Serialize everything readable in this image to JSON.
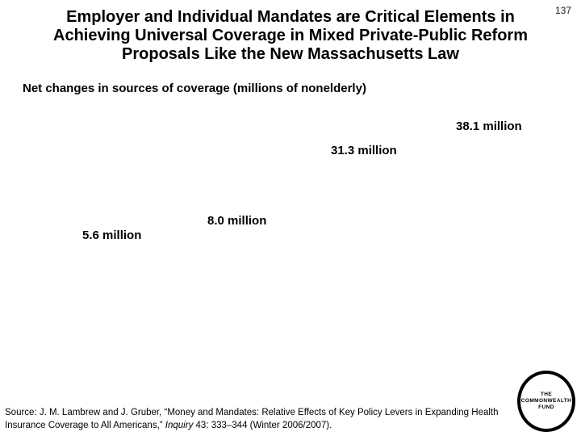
{
  "slide": {
    "page_number": "137",
    "title_lines": [
      "Employer and Individual Mandates are Critical Elements in",
      "Achieving Universal Coverage in Mixed Private-Public Reform",
      "Proposals Like the New Massachusetts Law"
    ]
  },
  "chart": {
    "subtitle": "Net changes in sources of coverage (millions of nonelderly)",
    "labels": [
      {
        "text": "38.1 million"
      },
      {
        "text": "31.3 million"
      },
      {
        "text": "8.0 million"
      },
      {
        "text": "5.6 million"
      }
    ]
  },
  "source": {
    "prefix": "Source: J. M. Lambrew and J. Gruber, “Money and Mandates: Relative Effects of Key Policy Levers in Expanding Health Insurance Coverage to All Americans,” ",
    "journal": "Inquiry",
    "suffix": " 43: 333–344 (Winter 2006/2007)."
  },
  "logo": {
    "lines": [
      "THE",
      "COMMONWEALTH",
      "FUND"
    ]
  },
  "colors": {
    "background": "#ffffff",
    "text": "#000000"
  },
  "chart_data": {
    "type": "bar",
    "title": "Net changes in sources of coverage (millions of nonelderly)",
    "unit": "millions of nonelderly",
    "values": [
      5.6,
      8.0,
      31.3,
      38.1
    ],
    "data_labels": [
      "5.6 million",
      "8.0 million",
      "31.3 million",
      "38.1 million"
    ],
    "render_note": "Only the data labels are visible in the image; bars, axes and category names are not rendered."
  }
}
